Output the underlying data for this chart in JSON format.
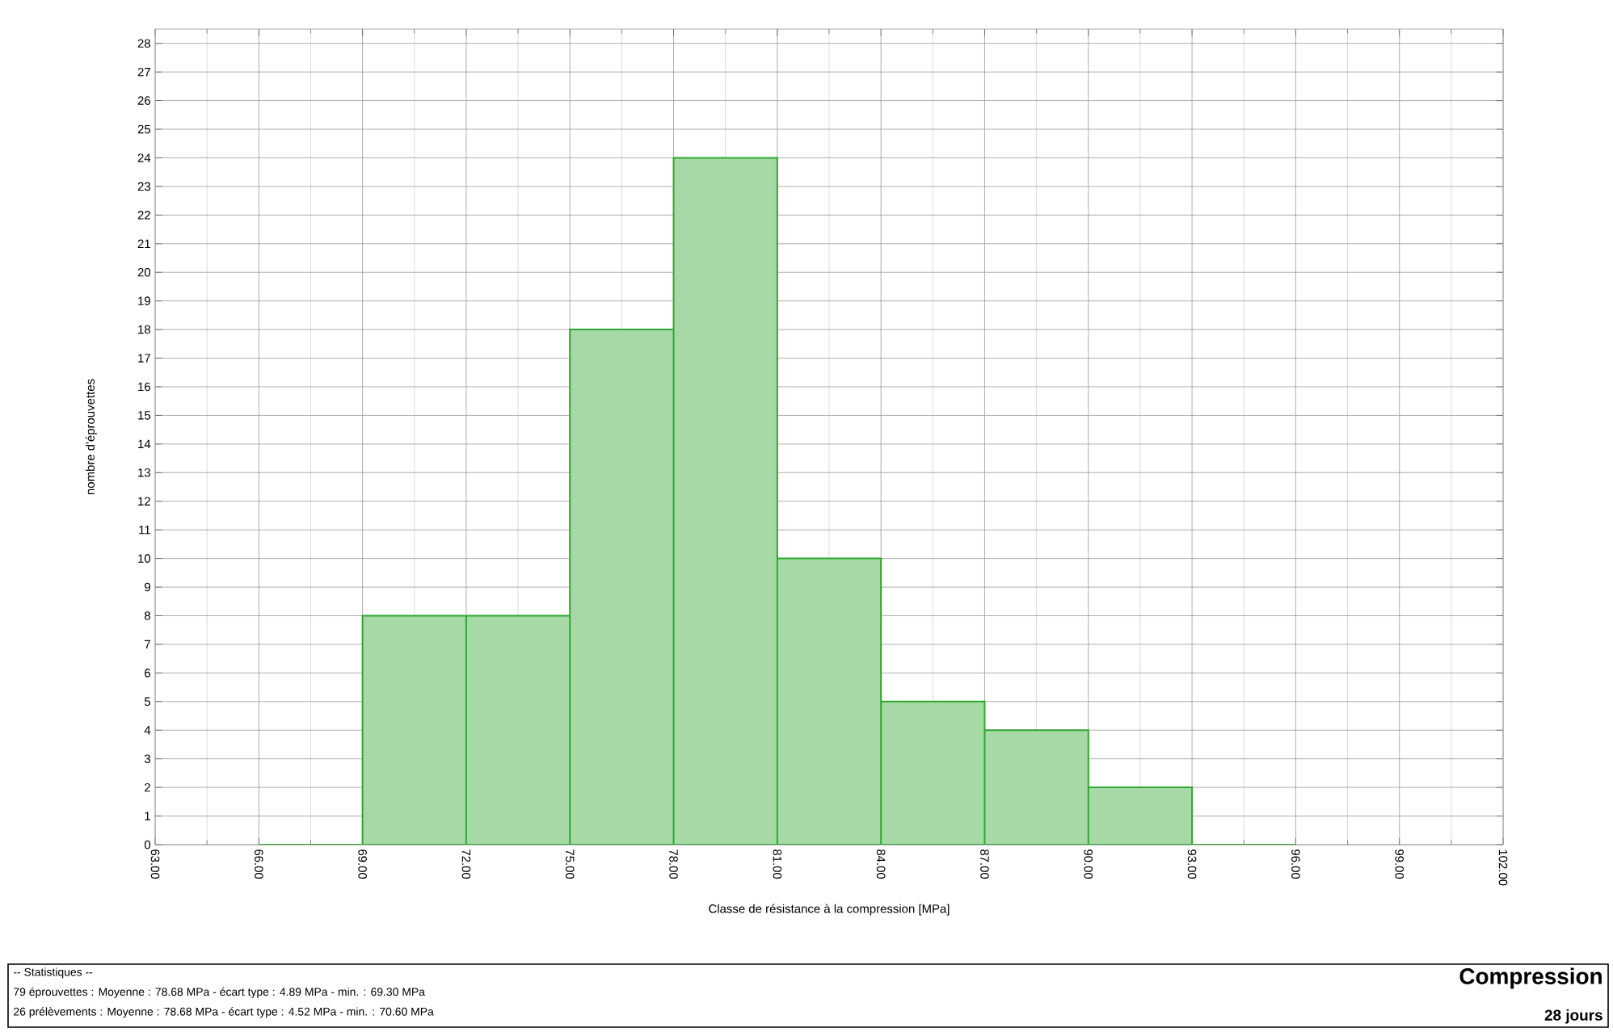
{
  "chart_data": {
    "type": "histogram",
    "title": "Compression",
    "subtitle": "28 jours",
    "xlabel": "Classe de résistance à la compression [MPa]",
    "ylabel": "nombre d'éprouvettes",
    "bins": [
      66,
      69,
      72,
      75,
      78,
      81,
      84,
      87,
      90,
      93,
      96
    ],
    "values": [
      0,
      8,
      8,
      18,
      24,
      10,
      5,
      4,
      2,
      0
    ],
    "color": "#a6d9a6",
    "xlim": [
      63,
      102
    ],
    "xticks": [
      {
        "value": 63,
        "label": "63.00"
      },
      {
        "value": 66,
        "label": "66.00"
      },
      {
        "value": 69,
        "label": "69.00"
      },
      {
        "value": 72,
        "label": "72.00"
      },
      {
        "value": 75,
        "label": "75.00"
      },
      {
        "value": 78,
        "label": "78.00"
      },
      {
        "value": 81,
        "label": "81.00"
      },
      {
        "value": 84,
        "label": "84.00"
      },
      {
        "value": 87,
        "label": "87.00"
      },
      {
        "value": 90,
        "label": "90.00"
      },
      {
        "value": 93,
        "label": "93.00"
      },
      {
        "value": 96,
        "label": "96.00"
      },
      {
        "value": 99,
        "label": "99.00"
      },
      {
        "value": 102,
        "label": "102.00"
      }
    ],
    "ylim": [
      0,
      28.5
    ],
    "yticks": [
      0,
      1,
      2,
      3,
      4,
      5,
      6,
      7,
      8,
      9,
      10,
      11,
      12,
      13,
      14,
      15,
      16,
      17,
      18,
      19,
      20,
      21,
      22,
      23,
      24,
      25,
      26,
      27,
      28
    ],
    "grid": true,
    "annotations": [
      "-- Statistiques --",
      "79 éprouvettes : Moyenne : 78.68 MPa - écart type : 4.89 MPa - min. : 69.30 MPa",
      "26 prélèvements : Moyenne : 78.68 MPa - écart type : 4.52 MPa - min. : 70.60 MPa"
    ]
  }
}
